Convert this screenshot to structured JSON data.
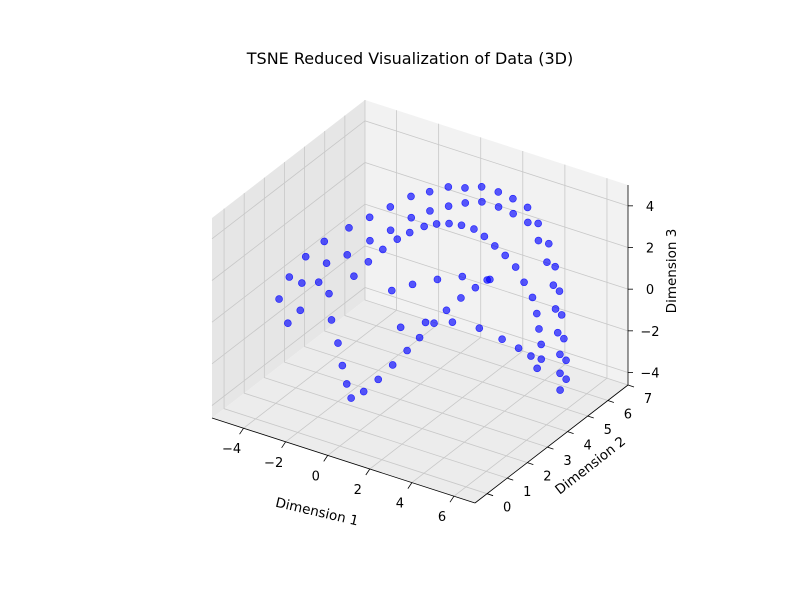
{
  "chart_data": {
    "type": "scatter",
    "projection": "3d",
    "title": "TSNE Reduced Visualization of Data (3D)",
    "xlabel": "Dimension 1",
    "ylabel": "Dimension 2",
    "zlabel": "Dimension 3",
    "xlim": [
      -5.5,
      7
    ],
    "ylim": [
      -0.6,
      7
    ],
    "zlim": [
      -4.6,
      5
    ],
    "xticks": [
      -4,
      -2,
      0,
      2,
      4,
      6
    ],
    "yticks": [
      0,
      1,
      2,
      3,
      4,
      5,
      6,
      7
    ],
    "zticks": [
      -4,
      -2,
      0,
      2,
      4
    ],
    "grid": true,
    "colors": {
      "point": "#0000ff",
      "pane": "#f2f2f2",
      "pane_side": "#e6e6e6",
      "pane_floor": "#ececec",
      "grid": "#c8c8c8"
    },
    "series": [
      {
        "points": [
          [
            -4.8,
            2.0,
            -0.6
          ],
          [
            -4.6,
            2.3,
            0.3
          ],
          [
            -4.3,
            2.8,
            1.0
          ],
          [
            -4.1,
            2.4,
            0.1
          ],
          [
            -3.8,
            3.2,
            1.6
          ],
          [
            -3.5,
            3.0,
            0.8
          ],
          [
            -3.2,
            3.8,
            2.0
          ],
          [
            -2.9,
            3.4,
            1.1
          ],
          [
            -2.6,
            4.2,
            2.4
          ],
          [
            -2.3,
            3.9,
            1.6
          ],
          [
            -2.0,
            4.6,
            2.8
          ],
          [
            -1.7,
            4.3,
            2.0
          ],
          [
            -1.4,
            5.0,
            3.2
          ],
          [
            -1.1,
            4.7,
            2.5
          ],
          [
            -0.8,
            5.3,
            3.4
          ],
          [
            -0.5,
            5.0,
            2.8
          ],
          [
            -0.2,
            5.6,
            3.6
          ],
          [
            0.1,
            5.3,
            3.0
          ],
          [
            0.4,
            5.8,
            3.6
          ],
          [
            0.7,
            5.5,
            3.2
          ],
          [
            1.0,
            6.0,
            3.7
          ],
          [
            1.3,
            5.7,
            3.3
          ],
          [
            1.6,
            6.2,
            3.5
          ],
          [
            1.9,
            5.9,
            3.1
          ],
          [
            2.2,
            6.3,
            3.3
          ],
          [
            2.5,
            6.0,
            2.9
          ],
          [
            2.8,
            6.4,
            3.0
          ],
          [
            3.1,
            6.1,
            2.6
          ],
          [
            3.4,
            6.3,
            2.5
          ],
          [
            3.7,
            6.0,
            2.0
          ],
          [
            4.0,
            6.2,
            1.8
          ],
          [
            4.2,
            5.9,
            1.2
          ],
          [
            4.4,
            6.1,
            0.9
          ],
          [
            4.6,
            5.8,
            0.3
          ],
          [
            4.7,
            6.0,
            -0.1
          ],
          [
            4.8,
            5.7,
            -0.7
          ],
          [
            4.9,
            5.9,
            -1.1
          ],
          [
            5.0,
            5.6,
            -1.7
          ],
          [
            5.1,
            5.8,
            -2.1
          ],
          [
            5.2,
            5.5,
            -2.6
          ],
          [
            5.3,
            5.7,
            -3.0
          ],
          [
            5.3,
            5.4,
            -3.4
          ],
          [
            5.4,
            5.6,
            -3.8
          ],
          [
            5.4,
            5.3,
            -4.1
          ],
          [
            -3.0,
            2.6,
            -0.2
          ],
          [
            -2.5,
            2.2,
            -1.0
          ],
          [
            -2.0,
            2.0,
            -1.8
          ],
          [
            -1.6,
            1.8,
            -2.6
          ],
          [
            -1.2,
            1.6,
            -3.2
          ],
          [
            -0.8,
            1.4,
            -3.6
          ],
          [
            -0.3,
            1.5,
            -3.2
          ],
          [
            0.2,
            1.7,
            -2.6
          ],
          [
            0.6,
            2.0,
            -2.0
          ],
          [
            1.0,
            2.3,
            -1.4
          ],
          [
            1.4,
            2.5,
            -0.8
          ],
          [
            1.8,
            2.8,
            -0.2
          ],
          [
            2.2,
            3.0,
            0.4
          ],
          [
            2.6,
            3.3,
            0.9
          ],
          [
            3.0,
            3.6,
            1.3
          ],
          [
            3.4,
            3.9,
            1.6
          ],
          [
            -2.2,
            3.0,
            0.6
          ],
          [
            -1.8,
            3.3,
            1.2
          ],
          [
            -1.4,
            3.6,
            1.7
          ],
          [
            -1.0,
            3.9,
            2.1
          ],
          [
            -0.6,
            4.1,
            2.4
          ],
          [
            -0.2,
            4.4,
            2.6
          ],
          [
            0.2,
            4.6,
            2.7
          ],
          [
            0.6,
            4.8,
            2.7
          ],
          [
            1.0,
            5.0,
            2.6
          ],
          [
            1.4,
            5.2,
            2.4
          ],
          [
            1.8,
            5.3,
            2.1
          ],
          [
            2.2,
            5.4,
            1.7
          ],
          [
            2.6,
            5.5,
            1.3
          ],
          [
            3.0,
            5.6,
            0.8
          ],
          [
            3.4,
            5.6,
            0.2
          ],
          [
            3.8,
            5.6,
            -0.4
          ],
          [
            4.1,
            5.5,
            -1.0
          ],
          [
            4.3,
            5.4,
            -1.6
          ],
          [
            4.5,
            5.3,
            -2.2
          ],
          [
            4.6,
            5.2,
            -2.8
          ],
          [
            -4.0,
            1.6,
            -1.2
          ],
          [
            -3.6,
            1.8,
            -0.6
          ],
          [
            -3.3,
            2.4,
            0.4
          ],
          [
            -0.4,
            3.0,
            0.5
          ],
          [
            0.3,
            3.3,
            0.8
          ],
          [
            1.1,
            3.7,
            1.0
          ],
          [
            1.9,
            4.1,
            1.1
          ],
          [
            2.7,
            4.5,
            0.9
          ],
          [
            0.5,
            2.5,
            -0.6
          ],
          [
            1.3,
            2.9,
            -0.4
          ],
          [
            2.1,
            3.4,
            -0.5
          ],
          [
            2.9,
            3.9,
            -0.9
          ],
          [
            3.6,
            4.3,
            -1.5
          ],
          [
            4.0,
            4.7,
            -2.1
          ],
          [
            4.3,
            5.0,
            -2.6
          ],
          [
            4.5,
            5.1,
            -3.2
          ]
        ]
      }
    ]
  }
}
